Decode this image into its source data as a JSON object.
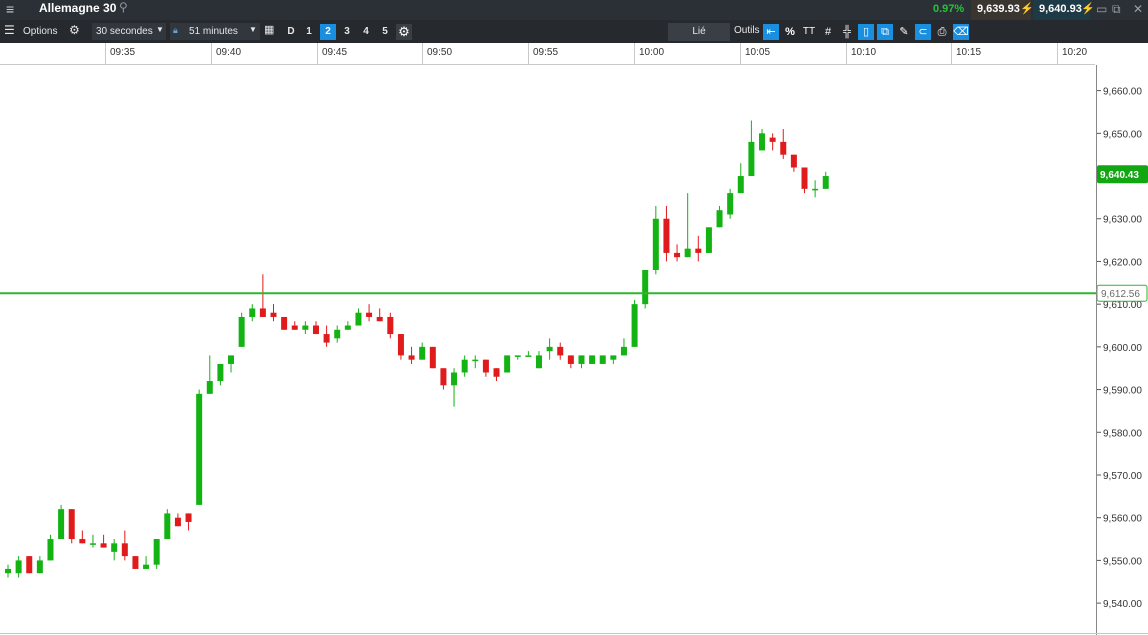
{
  "titlebar": {
    "menu_icon": "hamburger-menu-icon",
    "instrument": "Allemagne 30",
    "search_icon": "search-icon",
    "change_pct": "0.97%",
    "sell_price": "9,639.93",
    "buy_price": "9,640.93",
    "sell_color": "#ff9d1d",
    "buy_color": "#27b6ff",
    "change_color": "#26c33a"
  },
  "toolbar": {
    "options_label": "Options",
    "interval": "30 secondes",
    "range": "51 minutes",
    "day_label": "D",
    "layouts": [
      "1",
      "2",
      "3",
      "4",
      "5"
    ],
    "active_layout": "2",
    "linked_label": "Lié",
    "tools_label": "Outils",
    "percent_label": "%",
    "text_tool_label": "TT"
  },
  "time_axis": {
    "labels": [
      "09:35",
      "09:40",
      "09:45",
      "09:50",
      "09:55",
      "10:00",
      "10:05",
      "10:10",
      "10:15",
      "10:20"
    ]
  },
  "chart_data": {
    "type": "candlestick",
    "title": "",
    "xlabel": "",
    "ylabel": "",
    "ylim": [
      9533,
      9666
    ],
    "yticks": [
      "9,540.00",
      "9,550.00",
      "9,560.00",
      "9,570.00",
      "9,580.00",
      "9,590.00",
      "9,600.00",
      "9,610.00",
      "9,620.00",
      "9,630.00",
      "9,640.00",
      "9,650.00",
      "9,660.00"
    ],
    "current_price_label": "9,640.43",
    "current_price": 9640.43,
    "reference_line_label": "9,612.56",
    "reference_price": 9612.56,
    "up_color": "#12b312",
    "down_color": "#e01b1b",
    "candles": [
      {
        "o": 9547,
        "h": 9549,
        "l": 9546,
        "c": 9548
      },
      {
        "o": 9547,
        "h": 9551,
        "l": 9546,
        "c": 9550
      },
      {
        "o": 9551,
        "h": 9551,
        "l": 9547,
        "c": 9547
      },
      {
        "o": 9547,
        "h": 9551,
        "l": 9547,
        "c": 9550
      },
      {
        "o": 9550,
        "h": 9556,
        "l": 9550,
        "c": 9555
      },
      {
        "o": 9555,
        "h": 9563,
        "l": 9555,
        "c": 9562
      },
      {
        "o": 9562,
        "h": 9562,
        "l": 9554,
        "c": 9555
      },
      {
        "o": 9555,
        "h": 9557,
        "l": 9554,
        "c": 9554
      },
      {
        "o": 9554,
        "h": 9556,
        "l": 9553,
        "c": 9554
      },
      {
        "o": 9554,
        "h": 9556,
        "l": 9553,
        "c": 9553
      },
      {
        "o": 9552,
        "h": 9555,
        "l": 9550,
        "c": 9554
      },
      {
        "o": 9554,
        "h": 9557,
        "l": 9550,
        "c": 9551
      },
      {
        "o": 9551,
        "h": 9551,
        "l": 9548,
        "c": 9548
      },
      {
        "o": 9548,
        "h": 9551,
        "l": 9548,
        "c": 9549
      },
      {
        "o": 9549,
        "h": 9555,
        "l": 9548,
        "c": 9555
      },
      {
        "o": 9555,
        "h": 9562,
        "l": 9555,
        "c": 9561
      },
      {
        "o": 9560,
        "h": 9561,
        "l": 9558,
        "c": 9558
      },
      {
        "o": 9561,
        "h": 9561,
        "l": 9557,
        "c": 9559
      },
      {
        "o": 9563,
        "h": 9590,
        "l": 9563,
        "c": 9589
      },
      {
        "o": 9589,
        "h": 9598,
        "l": 9589,
        "c": 9592
      },
      {
        "o": 9592,
        "h": 9596,
        "l": 9591,
        "c": 9596
      },
      {
        "o": 9596,
        "h": 9598,
        "l": 9594,
        "c": 9598
      },
      {
        "o": 9600,
        "h": 9608,
        "l": 9600,
        "c": 9607
      },
      {
        "o": 9607,
        "h": 9610,
        "l": 9606,
        "c": 9609
      },
      {
        "o": 9609,
        "h": 9617,
        "l": 9607,
        "c": 9607
      },
      {
        "o": 9608,
        "h": 9610,
        "l": 9606,
        "c": 9607
      },
      {
        "o": 9607,
        "h": 9607,
        "l": 9604,
        "c": 9604
      },
      {
        "o": 9605,
        "h": 9606,
        "l": 9604,
        "c": 9604
      },
      {
        "o": 9604,
        "h": 9606,
        "l": 9603,
        "c": 9605
      },
      {
        "o": 9605,
        "h": 9606,
        "l": 9603,
        "c": 9603
      },
      {
        "o": 9603,
        "h": 9605,
        "l": 9600,
        "c": 9601
      },
      {
        "o": 9602,
        "h": 9605,
        "l": 9601,
        "c": 9604
      },
      {
        "o": 9604,
        "h": 9606,
        "l": 9604,
        "c": 9605
      },
      {
        "o": 9605,
        "h": 9609,
        "l": 9605,
        "c": 9608
      },
      {
        "o": 9608,
        "h": 9610,
        "l": 9606,
        "c": 9607
      },
      {
        "o": 9607,
        "h": 9609,
        "l": 9606,
        "c": 9606
      },
      {
        "o": 9607,
        "h": 9608,
        "l": 9602,
        "c": 9603
      },
      {
        "o": 9603,
        "h": 9603,
        "l": 9597,
        "c": 9598
      },
      {
        "o": 9598,
        "h": 9600,
        "l": 9596,
        "c": 9597
      },
      {
        "o": 9597,
        "h": 9601,
        "l": 9597,
        "c": 9600
      },
      {
        "o": 9600,
        "h": 9600,
        "l": 9595,
        "c": 9595
      },
      {
        "o": 9595,
        "h": 9595,
        "l": 9590,
        "c": 9591
      },
      {
        "o": 9591,
        "h": 9595,
        "l": 9586,
        "c": 9594
      },
      {
        "o": 9594,
        "h": 9598,
        "l": 9593,
        "c": 9597
      },
      {
        "o": 9597,
        "h": 9598,
        "l": 9595,
        "c": 9597
      },
      {
        "o": 9597,
        "h": 9597,
        "l": 9593,
        "c": 9594
      },
      {
        "o": 9595,
        "h": 9595,
        "l": 9592,
        "c": 9593
      },
      {
        "o": 9594,
        "h": 9598,
        "l": 9594,
        "c": 9598
      },
      {
        "o": 9598,
        "h": 9598,
        "l": 9597,
        "c": 9598
      },
      {
        "o": 9598,
        "h": 9599,
        "l": 9598,
        "c": 9598
      },
      {
        "o": 9595,
        "h": 9599,
        "l": 9595,
        "c": 9598
      },
      {
        "o": 9599,
        "h": 9602,
        "l": 9597,
        "c": 9600
      },
      {
        "o": 9600,
        "h": 9601,
        "l": 9597,
        "c": 9598
      },
      {
        "o": 9598,
        "h": 9598,
        "l": 9595,
        "c": 9596
      },
      {
        "o": 9596,
        "h": 9598,
        "l": 9595,
        "c": 9598
      },
      {
        "o": 9596,
        "h": 9598,
        "l": 9596,
        "c": 9598
      },
      {
        "o": 9596,
        "h": 9598,
        "l": 9596,
        "c": 9598
      },
      {
        "o": 9597,
        "h": 9598,
        "l": 9596,
        "c": 9598
      },
      {
        "o": 9598,
        "h": 9602,
        "l": 9598,
        "c": 9600
      },
      {
        "o": 9600,
        "h": 9611,
        "l": 9600,
        "c": 9610
      },
      {
        "o": 9610,
        "h": 9618,
        "l": 9609,
        "c": 9618
      },
      {
        "o": 9618,
        "h": 9633,
        "l": 9617,
        "c": 9630
      },
      {
        "o": 9630,
        "h": 9633,
        "l": 9620,
        "c": 9622
      },
      {
        "o": 9622,
        "h": 9624,
        "l": 9620,
        "c": 9621
      },
      {
        "o": 9621,
        "h": 9636,
        "l": 9621,
        "c": 9623
      },
      {
        "o": 9623,
        "h": 9626,
        "l": 9620,
        "c": 9622
      },
      {
        "o": 9622,
        "h": 9628,
        "l": 9622,
        "c": 9628
      },
      {
        "o": 9628,
        "h": 9633,
        "l": 9628,
        "c": 9632
      },
      {
        "o": 9631,
        "h": 9637,
        "l": 9630,
        "c": 9636
      },
      {
        "o": 9636,
        "h": 9643,
        "l": 9636,
        "c": 9640
      },
      {
        "o": 9640,
        "h": 9653,
        "l": 9640,
        "c": 9648
      },
      {
        "o": 9646,
        "h": 9651,
        "l": 9646,
        "c": 9650
      },
      {
        "o": 9649,
        "h": 9650,
        "l": 9646,
        "c": 9648
      },
      {
        "o": 9648,
        "h": 9651,
        "l": 9644,
        "c": 9645
      },
      {
        "o": 9645,
        "h": 9645,
        "l": 9641,
        "c": 9642
      },
      {
        "o": 9642,
        "h": 9642,
        "l": 9636,
        "c": 9637
      },
      {
        "o": 9637,
        "h": 9639,
        "l": 9635,
        "c": 9637
      },
      {
        "o": 9637,
        "h": 9641,
        "l": 9637,
        "c": 9640
      }
    ]
  }
}
